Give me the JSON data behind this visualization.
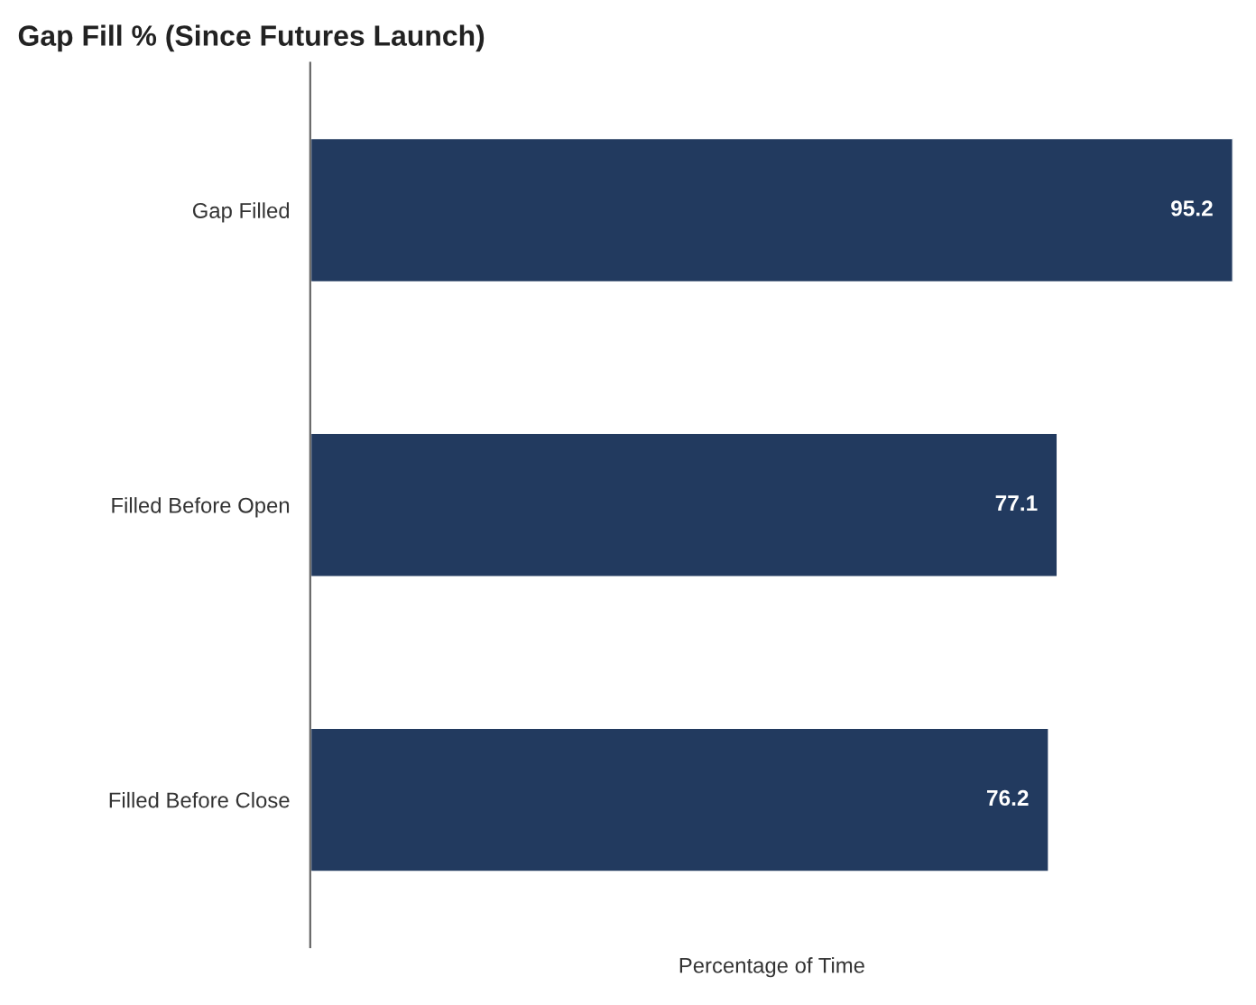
{
  "chart_data": {
    "type": "bar",
    "orientation": "horizontal",
    "title": "Gap Fill % (Since Futures Launch)",
    "xlabel": "Percentage of Time",
    "categories": [
      "Gap Filled",
      "Filled Before Open",
      "Filled Before Close"
    ],
    "values": [
      95.2,
      77.1,
      76.2
    ],
    "color": "#223a5f",
    "data_labels": true,
    "tick_labels": "y"
  }
}
